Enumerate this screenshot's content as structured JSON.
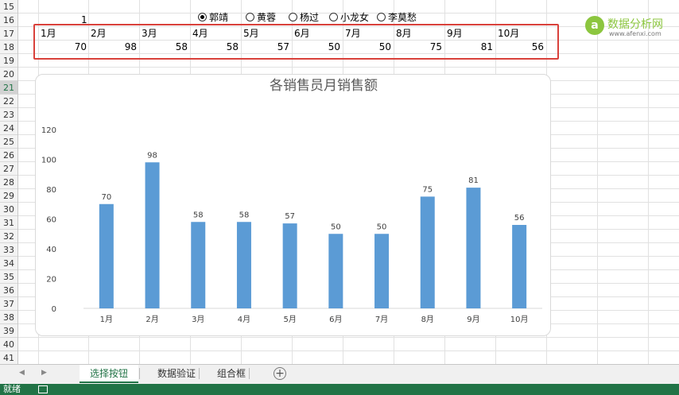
{
  "rows": [
    "15",
    "16",
    "17",
    "18",
    "19",
    "20",
    "21",
    "22",
    "23",
    "24",
    "25",
    "26",
    "27",
    "28",
    "29",
    "30",
    "31",
    "32",
    "33",
    "34",
    "35",
    "36",
    "37",
    "38",
    "39",
    "40",
    "41"
  ],
  "selected_row": "21",
  "cell_d16": "1",
  "radios": [
    {
      "label": "郭靖",
      "checked": true
    },
    {
      "label": "黄蓉",
      "checked": false
    },
    {
      "label": "杨过",
      "checked": false
    },
    {
      "label": "小龙女",
      "checked": false
    },
    {
      "label": "李莫愁",
      "checked": false
    }
  ],
  "table": {
    "months": [
      "1月",
      "2月",
      "3月",
      "4月",
      "5月",
      "6月",
      "7月",
      "8月",
      "9月",
      "10月"
    ],
    "values": [
      "70",
      "98",
      "58",
      "58",
      "57",
      "50",
      "50",
      "75",
      "81",
      "56"
    ]
  },
  "chart_data": {
    "type": "bar",
    "title": "各销售员月销售额",
    "categories": [
      "1月",
      "2月",
      "3月",
      "4月",
      "5月",
      "6月",
      "7月",
      "8月",
      "9月",
      "10月"
    ],
    "values": [
      70,
      98,
      58,
      58,
      57,
      50,
      50,
      75,
      81,
      56
    ],
    "yticks": [
      "0",
      "20",
      "40",
      "60",
      "80",
      "100",
      "120"
    ],
    "ylim": [
      0,
      120
    ],
    "bar_color": "#5b9bd5",
    "grid": false,
    "data_labels": true
  },
  "watermark": {
    "title": "数据分析网",
    "site": "www.afenxi.com",
    "logo_letter": "a"
  },
  "sheet_tabs": [
    {
      "label": "选择按钮",
      "active": true
    },
    {
      "label": "数据验证",
      "active": false
    },
    {
      "label": "组合框",
      "active": false
    }
  ],
  "add_sheet_symbol": "+",
  "nav_left": "◀",
  "nav_right": "▶",
  "status": {
    "text": "就绪"
  },
  "colors": {
    "excel_green": "#217346",
    "highlight_red": "#d9413b",
    "bar": "#5b9bd5"
  }
}
